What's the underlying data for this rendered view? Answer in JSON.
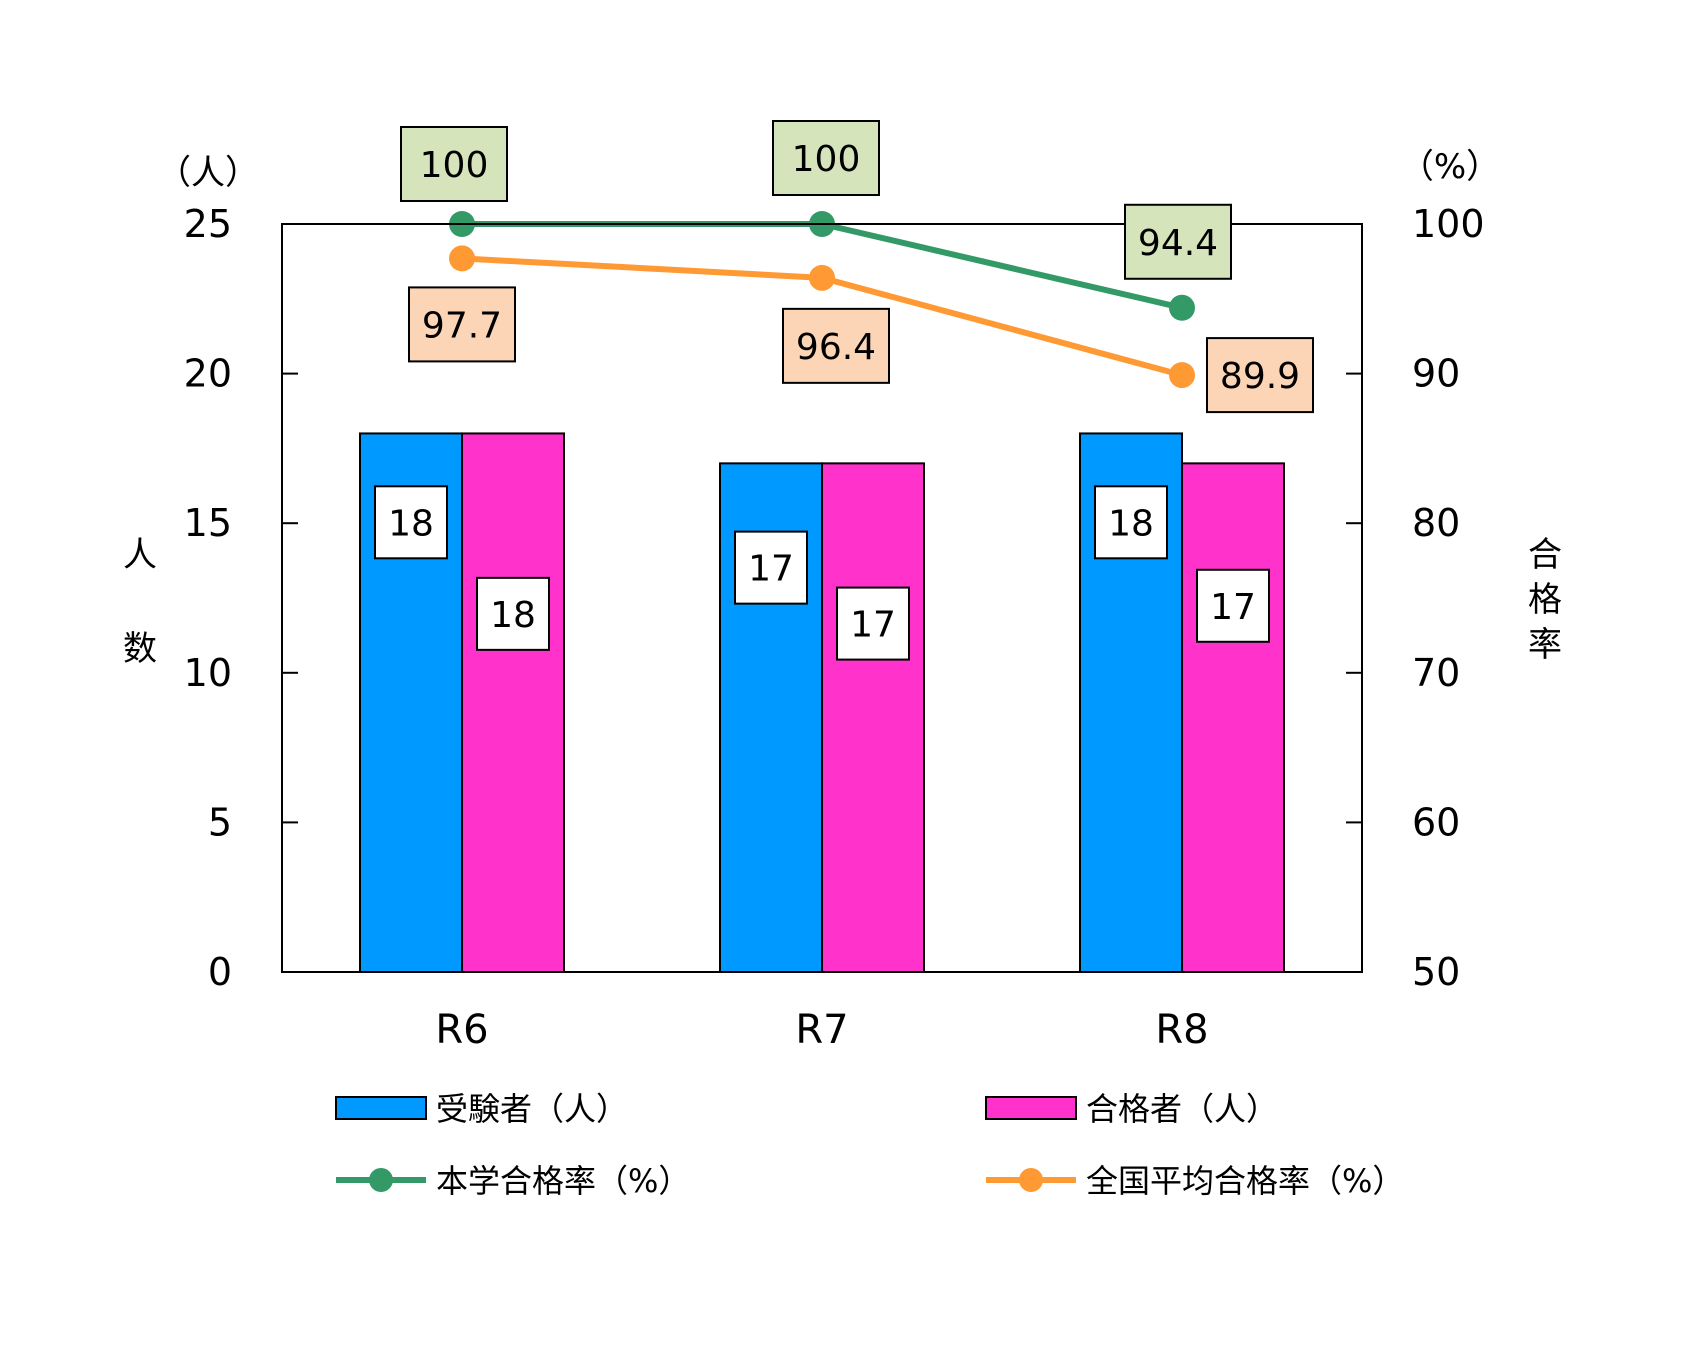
{
  "chart_data": {
    "type": "bar",
    "categories": [
      "R6",
      "R7",
      "R8"
    ],
    "left_axis": {
      "title": "人数",
      "unit": "（人）",
      "ylim": [
        0,
        25
      ],
      "ticks": [
        0,
        5,
        10,
        15,
        20,
        25
      ]
    },
    "right_axis": {
      "title": "合格率",
      "unit": "（%）",
      "ylim": [
        50,
        100
      ],
      "ticks": [
        50,
        60,
        70,
        80,
        90,
        100
      ]
    },
    "series": [
      {
        "name": "受験者（人）",
        "kind": "bar",
        "axis": "left",
        "values": [
          18,
          17,
          18
        ],
        "color": "#0099FF",
        "label_bg": "#FFFFFF"
      },
      {
        "name": "合格者（人）",
        "kind": "bar",
        "axis": "left",
        "values": [
          18,
          17,
          17
        ],
        "color": "#FF33CC",
        "label_bg": "#FFFFFF"
      },
      {
        "name": "本学合格率（%）",
        "kind": "line",
        "axis": "right",
        "values": [
          100,
          100,
          94.4
        ],
        "color": "#339966",
        "label_bg": "#D6E4BC"
      },
      {
        "name": "全国平均合格率（%）",
        "kind": "line",
        "axis": "right",
        "values": [
          97.7,
          96.4,
          89.9
        ],
        "color": "#FF9933",
        "label_bg": "#FBD5B5"
      }
    ],
    "legend_position": "bottom",
    "grid": false
  }
}
